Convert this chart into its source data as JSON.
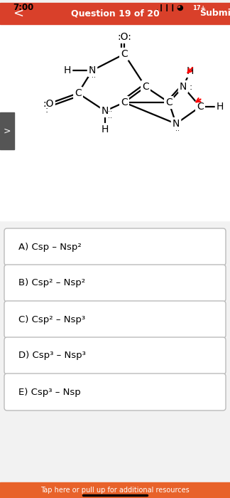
{
  "bg_color": "#f2f2f2",
  "header_color": "#d9402a",
  "header_text": "Question 19 of 20",
  "header_submit": "Submit",
  "header_back": "<",
  "time_text": "7:00",
  "answer_options": [
    "A) Csp – Nsp²",
    "B) Csp² – Nsp²",
    "C) Csp² – Nsp³",
    "D) Csp³ – Nsp³",
    "E) Csp³ – Nsp"
  ],
  "footer_text": "Tap here or pull up for additional resources",
  "footer_color": "#e8622a",
  "molecule_bg": "#ffffff",
  "panel_bg": "#ffffff"
}
